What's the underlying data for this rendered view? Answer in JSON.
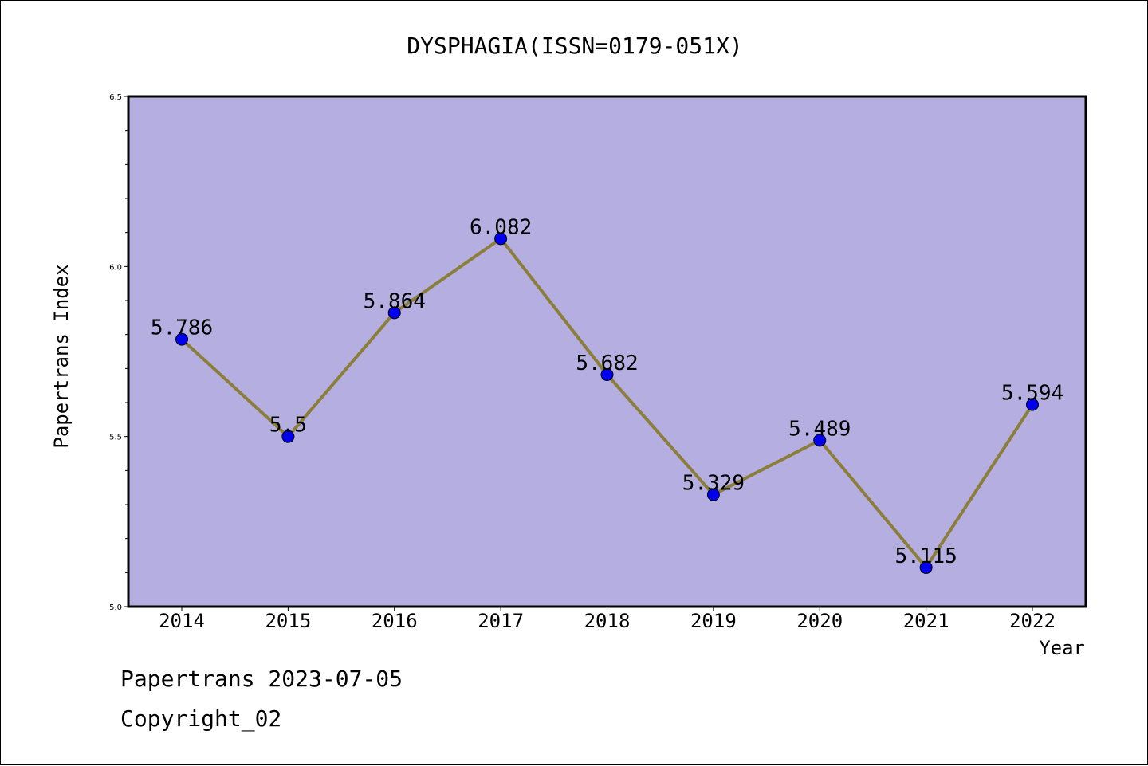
{
  "chart_data": {
    "type": "line",
    "title": "DYSPHAGIA(ISSN=0179-051X)",
    "xlabel": "Year",
    "ylabel": "Papertrans Index",
    "categories": [
      "2014",
      "2015",
      "2016",
      "2017",
      "2018",
      "2019",
      "2020",
      "2021",
      "2022"
    ],
    "values": [
      5.786,
      5.5,
      5.864,
      6.082,
      5.682,
      5.329,
      5.489,
      5.115,
      5.594
    ],
    "data_labels": [
      "5.786",
      "5.5",
      "5.864",
      "6.082",
      "5.682",
      "5.329",
      "5.489",
      "5.115",
      "5.594"
    ],
    "ylim": [
      5.0,
      6.5
    ],
    "yticks": [
      "5.0",
      "5.5",
      "6.0",
      "6.5"
    ],
    "grid": false,
    "colors": {
      "plot_background": "#b5afe1",
      "line": "#8b7d3a",
      "marker": "#0000ee"
    }
  },
  "footer": {
    "line1": "Papertrans 2023-07-05",
    "line2": "Copyright_02"
  }
}
